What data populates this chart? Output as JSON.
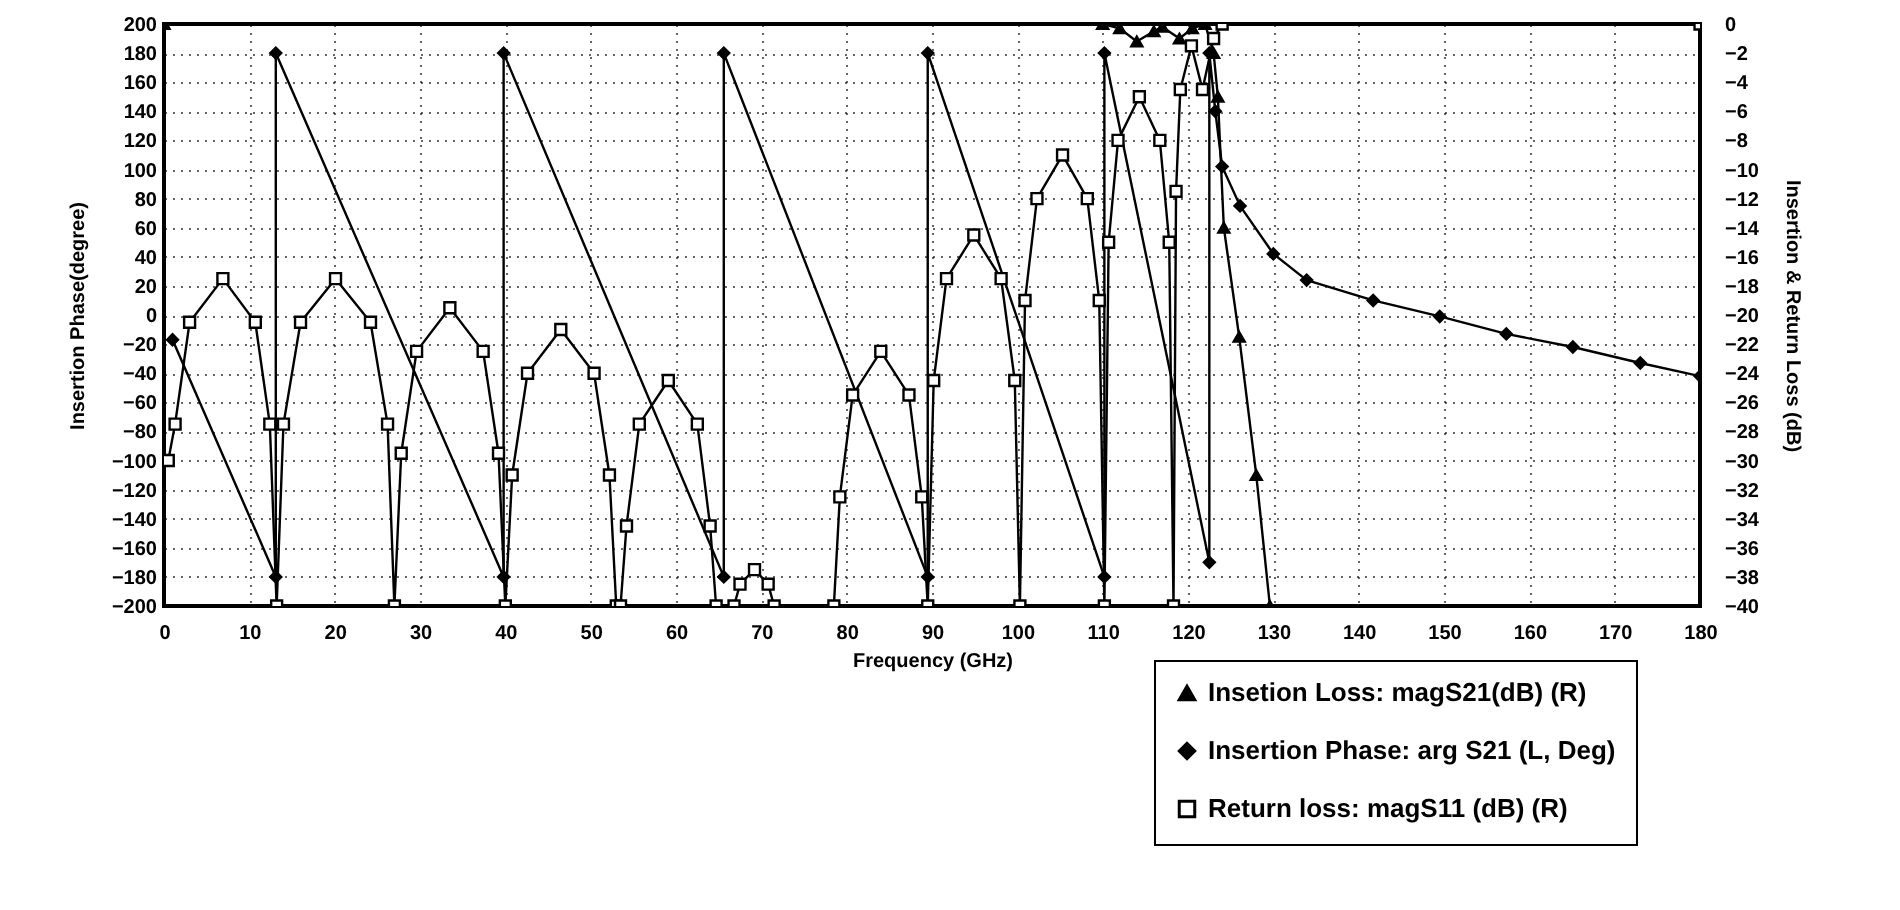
{
  "chart_data": {
    "type": "line",
    "xlabel": "Frequency (GHz)",
    "ylabel": "Insertion Phase(degree)",
    "y2label": "Insertion & Return Loss (dB)",
    "xlim": [
      0,
      180
    ],
    "xticks": [
      0,
      10,
      20,
      30,
      40,
      50,
      60,
      70,
      80,
      90,
      100,
      110,
      120,
      130,
      140,
      150,
      160,
      170,
      180
    ],
    "ylim": [
      -200,
      200
    ],
    "yticks": [
      -200,
      -180,
      -160,
      -140,
      -120,
      -100,
      -80,
      -60,
      -40,
      -20,
      0,
      20,
      40,
      60,
      80,
      100,
      120,
      140,
      160,
      180,
      200
    ],
    "y2lim": [
      -40,
      0
    ],
    "y2ticks": [
      -40,
      -38,
      -36,
      -34,
      -32,
      -30,
      -28,
      -26,
      -24,
      -22,
      -20,
      -18,
      -16,
      -14,
      -12,
      -10,
      -8,
      -6,
      -4,
      -2,
      0
    ],
    "grid": true,
    "legend": "bottom right",
    "line_style": "solid",
    "series": [
      {
        "name": "Insetion Loss: magS21(dB) (R)",
        "color": "#000000",
        "marker": "triangle",
        "axis": "y2",
        "x": [
          0,
          110,
          112,
          114,
          116,
          117,
          119,
          120.5,
          122,
          123,
          123.5,
          124.2,
          126,
          128,
          129.6
        ],
        "values": [
          0,
          0,
          -0.3,
          -1.2,
          -0.5,
          -0.2,
          -1,
          -0.3,
          0,
          -2,
          -5,
          -14,
          -21.5,
          -31,
          -40
        ]
      },
      {
        "name": "Insertion Phase: arg S21 (L, Deg)",
        "color": "#000000",
        "marker": "diamond",
        "x": [
          1,
          13.1,
          13.1,
          39.8,
          39.8,
          65.6,
          65.6,
          89.5,
          89.5,
          110.2,
          110.2,
          122.5,
          122.5,
          123.2,
          124,
          126.1,
          130,
          133.9,
          141.7,
          149.5,
          157.3,
          165.1,
          173,
          180
        ],
        "values": [
          -17,
          -180,
          180,
          -180,
          180,
          -180,
          180,
          -180,
          180,
          -180,
          180,
          -170,
          180,
          140,
          102,
          75,
          42,
          24,
          10,
          -1,
          -13,
          -22,
          -33,
          -42
        ]
      },
      {
        "name": "Return loss: magS11 (dB) (R)",
        "color": "#000000",
        "marker": "square",
        "axis": "y2",
        "x": [
          0.5,
          1.3,
          3,
          6.9,
          10.7,
          12.4,
          13.2,
          14,
          16,
          20.1,
          24.2,
          26.2,
          27,
          27.8,
          29.6,
          33.5,
          37.4,
          39.2,
          40,
          40.8,
          42.6,
          46.5,
          50.4,
          52.2,
          53,
          53.5,
          54.2,
          55.7,
          59.1,
          62.5,
          64,
          64.7,
          66.8,
          67.5,
          69.2,
          70.8,
          71.5,
          78.5,
          79.2,
          80.7,
          84,
          87.3,
          88.8,
          89.5,
          90.2,
          91.7,
          94.9,
          98.1,
          99.7,
          100.3,
          100.9,
          102.3,
          105.3,
          108.2,
          109.6,
          110.2,
          110.7,
          111.8,
          114.3,
          116.7,
          117.8,
          118.3,
          118.6,
          119.1,
          120.4,
          121.7,
          123,
          124,
          180
        ],
        "values": [
          -30,
          -27.5,
          -20.5,
          -17.5,
          -20.5,
          -27.5,
          -40,
          -27.5,
          -20.5,
          -17.5,
          -20.5,
          -27.5,
          -40,
          -29.5,
          -22.5,
          -19.5,
          -22.5,
          -29.5,
          -40,
          -31,
          -24,
          -21,
          -24,
          -31,
          -40,
          -40,
          -34.5,
          -27.5,
          -24.5,
          -27.5,
          -34.5,
          -40,
          -40,
          -38.5,
          -37.5,
          -38.5,
          -40,
          -40,
          -32.5,
          -25.5,
          -22.5,
          -25.5,
          -32.5,
          -40,
          -24.5,
          -17.5,
          -14.5,
          -17.5,
          -24.5,
          -40,
          -19,
          -12,
          -9,
          -12,
          -19,
          -40,
          -15,
          -8,
          -5,
          -8,
          -15,
          -40,
          -11.5,
          -4.5,
          -1.5,
          -4.5,
          -1,
          0,
          0
        ]
      }
    ]
  }
}
